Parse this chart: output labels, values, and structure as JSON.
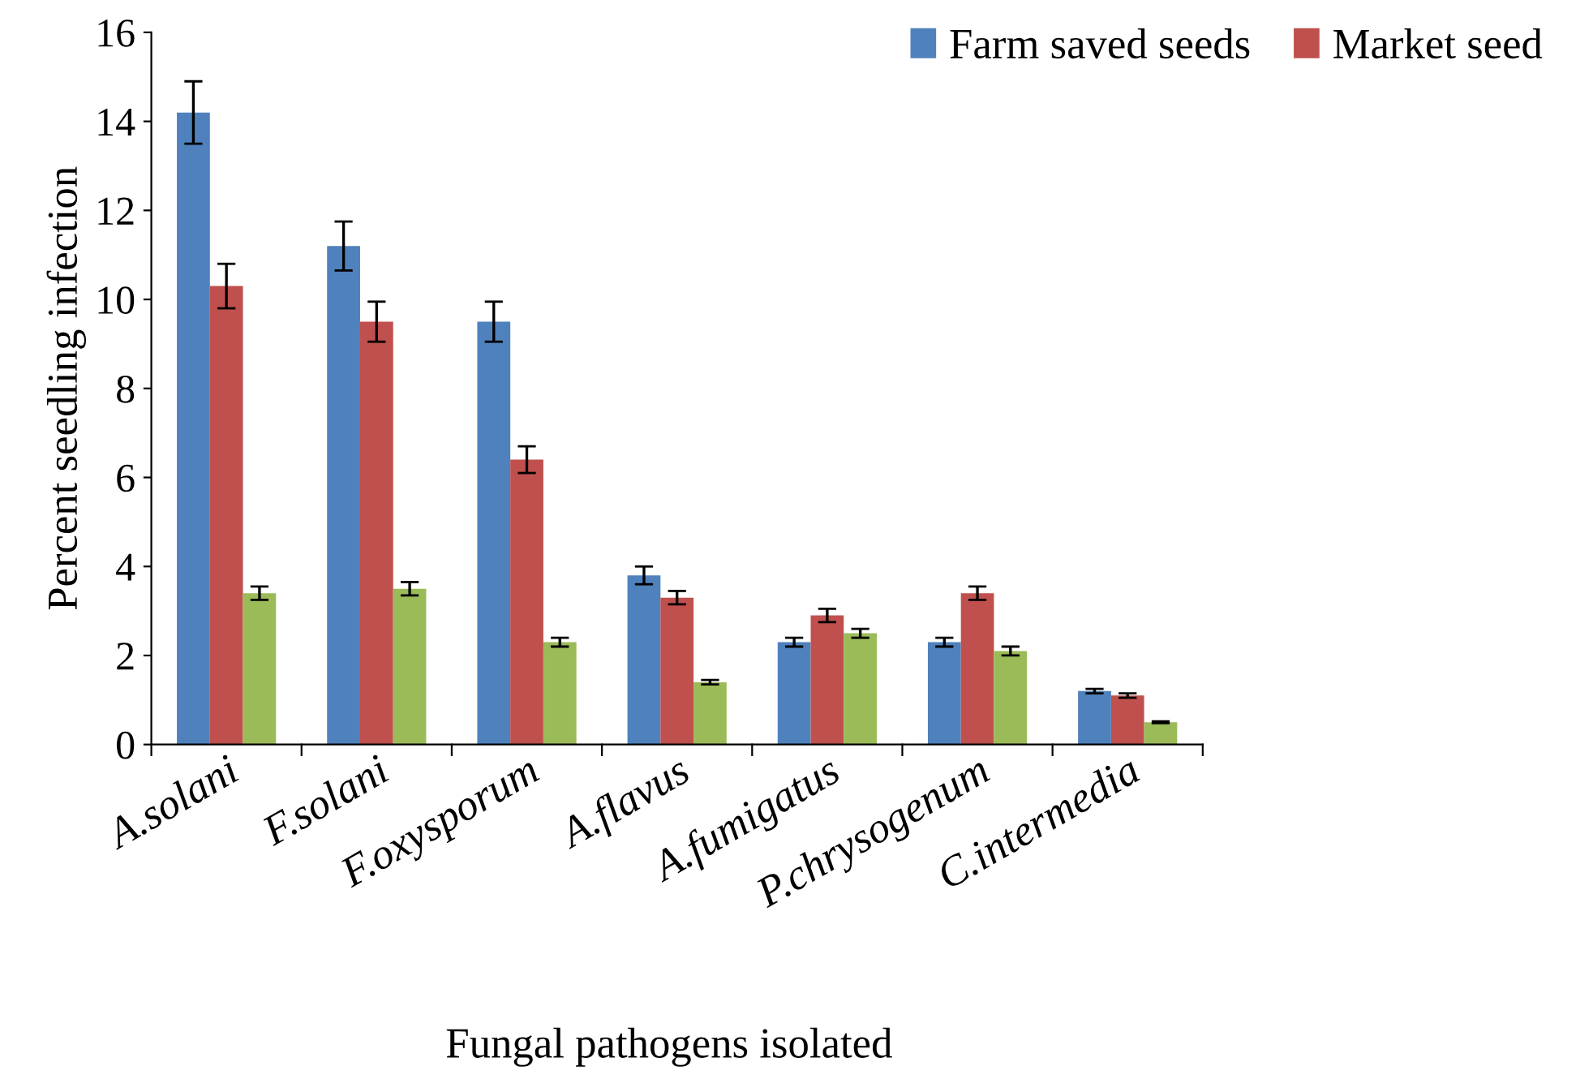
{
  "chart_data": {
    "type": "bar",
    "xlabel": "Fungal pathogens isolated",
    "ylabel": "Percent seedling infection",
    "categories": [
      "A.solani",
      "F.solani",
      "F.oxysporum",
      "A.flavus",
      "A.fumigatus",
      "P.chrysogenum",
      "C.intermedia"
    ],
    "series": [
      {
        "name": "Farm saved seeds",
        "color": "#4f81bd",
        "values": [
          14.2,
          11.2,
          9.5,
          3.8,
          2.3,
          2.3,
          1.2
        ],
        "errors": [
          0.7,
          0.55,
          0.45,
          0.2,
          0.1,
          0.1,
          0.05
        ]
      },
      {
        "name": "Market seed",
        "color": "#c0504d",
        "values": [
          10.3,
          9.5,
          6.4,
          3.3,
          2.9,
          3.4,
          1.1
        ],
        "errors": [
          0.5,
          0.45,
          0.3,
          0.15,
          0.15,
          0.15,
          0.05
        ]
      },
      {
        "color": "#9bbb59",
        "values": [
          3.4,
          3.5,
          2.3,
          1.4,
          2.5,
          2.1,
          0.5
        ],
        "errors": [
          0.15,
          0.15,
          0.1,
          0.05,
          0.1,
          0.1,
          0.02
        ]
      }
    ],
    "ylim": [
      0,
      16
    ],
    "yticks": [
      0,
      2,
      4,
      6,
      8,
      10,
      12,
      14,
      16
    ],
    "grid": false,
    "legend": "top right"
  }
}
